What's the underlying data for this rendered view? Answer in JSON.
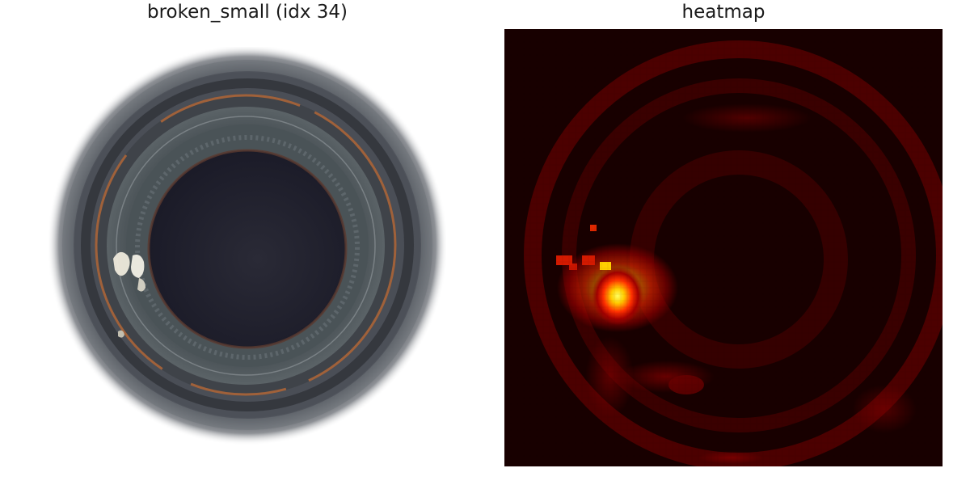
{
  "left_panel": {
    "title": "broken_small (idx 34)",
    "subject": "bottle-mouth-photo",
    "colors": {
      "background": "#ffffff",
      "glass_dark": "#3e4249",
      "interior": "#1f1f2e",
      "rim_copper": "#a0613a",
      "defect_highlight": "#f2f0e6"
    }
  },
  "right_panel": {
    "title": "heatmap",
    "colormap": "hot",
    "colors": {
      "low": "#0c0000",
      "mid": "#5a0000",
      "high": "#ff2a00",
      "peak": "#ffff40"
    }
  }
}
